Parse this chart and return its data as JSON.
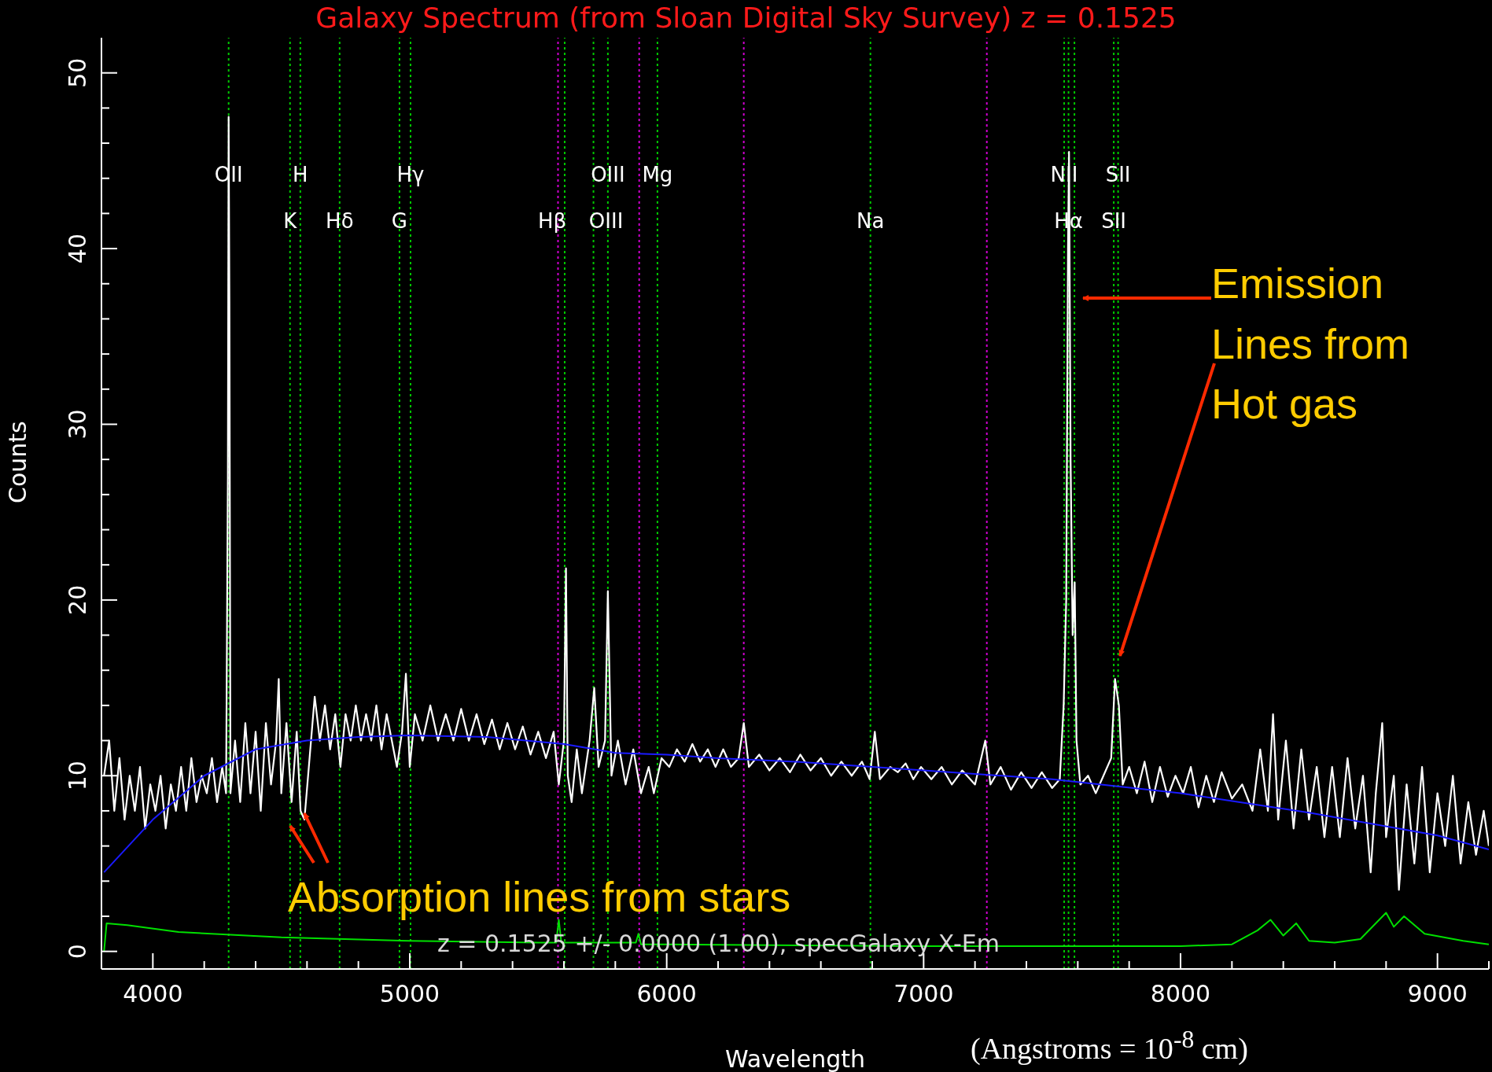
{
  "chart_data": {
    "type": "line",
    "title": "Galaxy Spectrum (from Sloan Digital Sky Survey) z = 0.1525",
    "xlabel": "Wavelength",
    "ylabel": "Counts",
    "xlim": [
      3800,
      9200
    ],
    "ylim": [
      -1,
      52
    ],
    "xticks": [
      {
        "value": 3800,
        "label": null
      },
      4000,
      {
        "value": 4200,
        "label": null
      },
      {
        "value": 4400,
        "label": null
      },
      {
        "value": 4600,
        "label": null
      },
      {
        "value": 4800,
        "label": null
      },
      5000,
      {
        "value": 5200,
        "label": null
      },
      {
        "value": 5400,
        "label": null
      },
      {
        "value": 5600,
        "label": null
      },
      {
        "value": 5800,
        "label": null
      },
      6000,
      {
        "value": 6200,
        "label": null
      },
      {
        "value": 6400,
        "label": null
      },
      {
        "value": 6600,
        "label": null
      },
      {
        "value": 6800,
        "label": null
      },
      7000,
      {
        "value": 7200,
        "label": null
      },
      {
        "value": 7400,
        "label": null
      },
      {
        "value": 7600,
        "label": null
      },
      {
        "value": 7800,
        "label": null
      },
      8000,
      {
        "value": 8200,
        "label": null
      },
      {
        "value": 8400,
        "label": null
      },
      {
        "value": 8600,
        "label": null
      },
      {
        "value": 8800,
        "label": null
      },
      9000,
      {
        "value": 9200,
        "label": null
      }
    ],
    "yticks": [
      0,
      {
        "value": 2,
        "label": null
      },
      {
        "value": 4,
        "label": null
      },
      {
        "value": 6,
        "label": null
      },
      {
        "value": 8,
        "label": null
      },
      10,
      {
        "value": 12,
        "label": null
      },
      {
        "value": 14,
        "label": null
      },
      {
        "value": 16,
        "label": null
      },
      {
        "value": 18,
        "label": null
      },
      20,
      {
        "value": 22,
        "label": null
      },
      {
        "value": 24,
        "label": null
      },
      {
        "value": 26,
        "label": null
      },
      {
        "value": 28,
        "label": null
      },
      30,
      {
        "value": 32,
        "label": null
      },
      {
        "value": 34,
        "label": null
      },
      {
        "value": 36,
        "label": null
      },
      {
        "value": 38,
        "label": null
      },
      40,
      {
        "value": 42,
        "label": null
      },
      {
        "value": 44,
        "label": null
      },
      {
        "value": 46,
        "label": null
      },
      {
        "value": 48,
        "label": null
      },
      50
    ],
    "grid": false,
    "legend": false,
    "marker": "none",
    "series": [
      {
        "type": "line",
        "color": "#ffffff",
        "x": [
          3810,
          3830,
          3850,
          3870,
          3890,
          3910,
          3930,
          3950,
          3970,
          3990,
          4010,
          4030,
          4050,
          4070,
          4090,
          4110,
          4130,
          4150,
          4170,
          4190,
          4210,
          4230,
          4250,
          4270,
          4285,
          4292,
          4295,
          4298,
          4302,
          4320,
          4340,
          4360,
          4380,
          4400,
          4420,
          4440,
          4460,
          4480,
          4490,
          4500,
          4520,
          4540,
          4560,
          4575,
          4590,
          4610,
          4630,
          4650,
          4670,
          4690,
          4710,
          4730,
          4750,
          4770,
          4790,
          4810,
          4830,
          4850,
          4870,
          4890,
          4910,
          4930,
          4950,
          4970,
          4985,
          5000,
          5020,
          5050,
          5080,
          5110,
          5140,
          5170,
          5200,
          5230,
          5260,
          5290,
          5320,
          5350,
          5380,
          5410,
          5440,
          5470,
          5500,
          5530,
          5560,
          5580,
          5600,
          5608,
          5615,
          5630,
          5650,
          5670,
          5700,
          5718,
          5735,
          5760,
          5771,
          5785,
          5810,
          5840,
          5870,
          5900,
          5930,
          5950,
          5980,
          6010,
          6040,
          6070,
          6100,
          6130,
          6160,
          6190,
          6220,
          6250,
          6280,
          6300,
          6320,
          6360,
          6400,
          6440,
          6480,
          6520,
          6560,
          6600,
          6640,
          6680,
          6720,
          6760,
          6790,
          6810,
          6830,
          6870,
          6900,
          6930,
          6960,
          6990,
          7030,
          7070,
          7110,
          7150,
          7200,
          7240,
          7260,
          7300,
          7340,
          7380,
          7420,
          7460,
          7500,
          7530,
          7545,
          7555,
          7562,
          7566,
          7572,
          7580,
          7588,
          7595,
          7610,
          7640,
          7670,
          7700,
          7730,
          7745,
          7760,
          7775,
          7800,
          7830,
          7860,
          7890,
          7920,
          7950,
          7980,
          8010,
          8040,
          8070,
          8100,
          8130,
          8160,
          8200,
          8240,
          8280,
          8310,
          8340,
          8360,
          8380,
          8410,
          8440,
          8470,
          8500,
          8530,
          8560,
          8590,
          8620,
          8650,
          8680,
          8710,
          8740,
          8760,
          8785,
          8800,
          8830,
          8850,
          8880,
          8910,
          8940,
          8970,
          9000,
          9030,
          9060,
          9090,
          9120,
          9150,
          9180,
          9200
        ],
        "values": [
          10,
          12,
          8,
          11,
          7.5,
          10,
          8,
          10.5,
          7,
          9.5,
          8,
          10,
          7,
          9.5,
          8,
          10.5,
          8,
          11,
          8.5,
          10,
          9,
          11,
          8.5,
          10.5,
          9,
          27,
          47.5,
          37,
          9,
          12,
          8.5,
          13,
          9,
          12.5,
          8,
          13,
          9.5,
          12,
          15.5,
          9,
          13,
          8.5,
          12.5,
          8,
          7.5,
          11,
          14.5,
          12,
          14,
          11.5,
          13.5,
          10.5,
          13.5,
          12,
          14,
          12,
          13.5,
          12,
          14,
          11.5,
          13.5,
          12,
          10.5,
          12.5,
          15.8,
          10.5,
          13.5,
          12,
          14,
          12,
          13.5,
          12,
          13.8,
          12,
          13.5,
          11.8,
          13.2,
          11.5,
          13,
          11.5,
          12.8,
          11.2,
          12.5,
          11,
          12.5,
          9.5,
          12,
          21.8,
          10,
          8.5,
          11.5,
          9,
          12,
          15,
          10.5,
          12,
          20.5,
          10,
          12,
          9.5,
          11.5,
          9,
          10.5,
          9,
          11,
          10.5,
          11.5,
          10.8,
          11.8,
          10.8,
          11.5,
          10.5,
          11.5,
          10.5,
          11,
          13,
          10.5,
          11.2,
          10.3,
          11,
          10.2,
          11.2,
          10.3,
          11,
          10,
          10.8,
          10,
          10.8,
          9.8,
          12.5,
          9.8,
          10.5,
          10.2,
          10.7,
          9.8,
          10.5,
          9.8,
          10.5,
          9.5,
          10.3,
          9.5,
          12,
          9.5,
          10.5,
          9.2,
          10.2,
          9.3,
          10.2,
          9.3,
          9.8,
          14,
          20,
          40,
          45.5,
          28,
          18,
          21,
          12,
          9.5,
          10,
          9,
          10,
          11,
          15.5,
          14,
          9.5,
          10.5,
          9,
          10.8,
          8.5,
          10.5,
          8.8,
          10,
          9,
          10.5,
          8.2,
          10,
          8.5,
          10.2,
          8.7,
          9.5,
          8,
          11.5,
          8,
          13.5,
          7.5,
          12,
          7,
          11.5,
          7.5,
          10.5,
          6.5,
          10.5,
          6.5,
          11,
          7,
          10,
          4.5,
          9,
          13,
          6.5,
          10,
          3.5,
          9.5,
          5,
          10.5,
          4.5,
          9,
          6,
          10,
          5,
          8.5,
          5.5,
          8,
          6
        ]
      },
      {
        "type": "line",
        "color": "#1a1aff",
        "x": [
          3810,
          4000,
          4200,
          4400,
          4600,
          4800,
          5000,
          5300,
          5600,
          5800,
          6000,
          6200,
          6500,
          7000,
          7500,
          8000,
          8500,
          9000,
          9200
        ],
        "values": [
          4.5,
          7.5,
          10,
          11.5,
          12,
          12.2,
          12.3,
          12.2,
          11.8,
          11.3,
          11.2,
          11,
          10.8,
          10.3,
          9.8,
          9,
          7.9,
          6.6,
          5.8
        ]
      },
      {
        "type": "line",
        "color": "#00e000",
        "x": [
          3810,
          3820,
          3900,
          4100,
          4500,
          5000,
          5500,
          5570,
          5580,
          5590,
          5880,
          5890,
          5900,
          6000,
          7000,
          8000,
          8200,
          8300,
          8350,
          8400,
          8450,
          8500,
          8600,
          8700,
          8800,
          8830,
          8870,
          8950,
          9100,
          9200
        ],
        "values": [
          0,
          1.6,
          1.5,
          1.1,
          0.8,
          0.6,
          0.5,
          0.5,
          1.8,
          0.5,
          0.5,
          1,
          0.4,
          0.4,
          0.3,
          0.3,
          0.4,
          1.2,
          1.8,
          0.9,
          1.6,
          0.6,
          0.5,
          0.7,
          2.2,
          1.4,
          2,
          1,
          0.6,
          0.4
        ]
      }
    ],
    "ref_lines": [
      {
        "axis": "x",
        "value": 4295,
        "color": "#00c800",
        "line_style": "dotted"
      },
      {
        "axis": "x",
        "value": 4534,
        "color": "#00c800",
        "line_style": "dotted"
      },
      {
        "axis": "x",
        "value": 4574,
        "color": "#00c800",
        "line_style": "dotted"
      },
      {
        "axis": "x",
        "value": 4727,
        "color": "#00c800",
        "line_style": "dotted"
      },
      {
        "axis": "x",
        "value": 4960,
        "color": "#00c800",
        "line_style": "dotted"
      },
      {
        "axis": "x",
        "value": 5003,
        "color": "#00c800",
        "line_style": "dotted"
      },
      {
        "axis": "x",
        "value": 5577,
        "color": "#d000d0",
        "line_style": "dotted"
      },
      {
        "axis": "x",
        "value": 5603,
        "color": "#00c800",
        "line_style": "dotted"
      },
      {
        "axis": "x",
        "value": 5715,
        "color": "#00c800",
        "line_style": "dotted"
      },
      {
        "axis": "x",
        "value": 5771,
        "color": "#00c800",
        "line_style": "dotted"
      },
      {
        "axis": "x",
        "value": 5893,
        "color": "#d000d0",
        "line_style": "dotted"
      },
      {
        "axis": "x",
        "value": 5964,
        "color": "#00c800",
        "line_style": "dotted"
      },
      {
        "axis": "x",
        "value": 6300,
        "color": "#d000d0",
        "line_style": "dotted"
      },
      {
        "axis": "x",
        "value": 6793,
        "color": "#00c800",
        "line_style": "dotted"
      },
      {
        "axis": "x",
        "value": 7246,
        "color": "#d000d0",
        "line_style": "dotted"
      },
      {
        "axis": "x",
        "value": 7547,
        "color": "#00c800",
        "line_style": "dotted"
      },
      {
        "axis": "x",
        "value": 7564,
        "color": "#00c800",
        "line_style": "dotted"
      },
      {
        "axis": "x",
        "value": 7587,
        "color": "#00c800",
        "line_style": "dotted"
      },
      {
        "axis": "x",
        "value": 7740,
        "color": "#00c800",
        "line_style": "dotted"
      },
      {
        "axis": "x",
        "value": 7757,
        "color": "#00c800",
        "line_style": "dotted"
      }
    ],
    "annotations": [
      {
        "text": "OII",
        "x": 4295,
        "y": 44.2
      },
      {
        "text": "H",
        "x": 4574,
        "y": 44.2
      },
      {
        "text": "K",
        "x": 4534,
        "y": 41.6
      },
      {
        "text": "Hδ",
        "x": 4727,
        "y": 41.6
      },
      {
        "text": "G",
        "x": 4960,
        "y": 41.6
      },
      {
        "text": "Hγ",
        "x": 5003,
        "y": 44.2
      },
      {
        "text": "Hβ",
        "x": 5603,
        "y": 41.6
      },
      {
        "text": "OIII",
        "x": 5771,
        "y": 44.2
      },
      {
        "text": "OIII",
        "x": 5715,
        "y": 41.6
      },
      {
        "text": "Mg",
        "x": 5964,
        "y": 44.2
      },
      {
        "text": "Na",
        "x": 6793,
        "y": 41.6
      },
      {
        "text": "NII",
        "x": 7547,
        "y": 44.2
      },
      {
        "text": "Hα",
        "x": 7564,
        "y": 41.6
      },
      {
        "text": "SII",
        "x": 7757,
        "y": 44.2
      },
      {
        "text": "SII",
        "x": 7740,
        "y": 41.6
      },
      {
        "text": "Emission Lines from Hot gas",
        "x": 7757,
        "y": 16.5
      },
      {
        "text": "Absorption lines from stars",
        "x": 4590,
        "y": 7.5
      },
      "z = 0.1525 +/- 0.0000 (1.00), specGalaxy X-Em",
      "(Angstroms = 10$^{-8}$ cm)"
    ]
  }
}
